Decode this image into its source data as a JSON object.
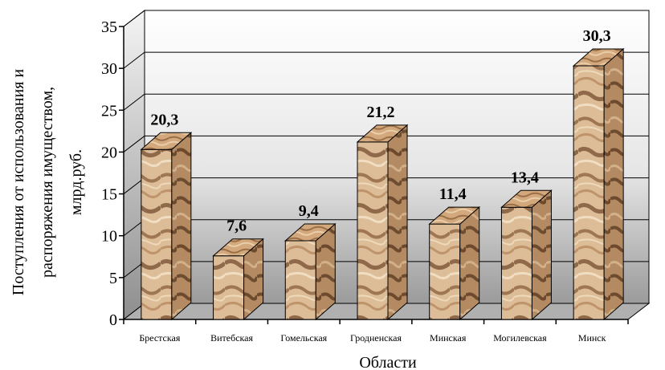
{
  "chart_data": {
    "type": "bar",
    "categories": [
      "Брестская",
      "Витебская",
      "Гомельская",
      "Гродненская",
      "Минская",
      "Могилевская",
      "Минск"
    ],
    "values": [
      20.3,
      7.6,
      9.4,
      21.2,
      11.4,
      13.4,
      30.3
    ],
    "value_labels": [
      "20,3",
      "7,6",
      "9,4",
      "21,2",
      "11,4",
      "13,4",
      "30,3"
    ],
    "title": "",
    "xlabel": "Области",
    "ylabel_lines": [
      "Поступления от использования и",
      "распоряжения имуществом,",
      "млрд.руб."
    ],
    "ylim": [
      0,
      35
    ],
    "yticks": [
      0,
      5,
      10,
      15,
      20,
      25,
      30,
      35
    ],
    "grid": true,
    "legend": "none",
    "colors": {
      "bar_light": "#e2c6a2",
      "bar_mid": "#c69c72",
      "bar_dark": "#6f4a2c",
      "floor": "#b0b0b0",
      "wall_top": "#ffffff",
      "wall_bottom": "#9a9a9a"
    }
  }
}
